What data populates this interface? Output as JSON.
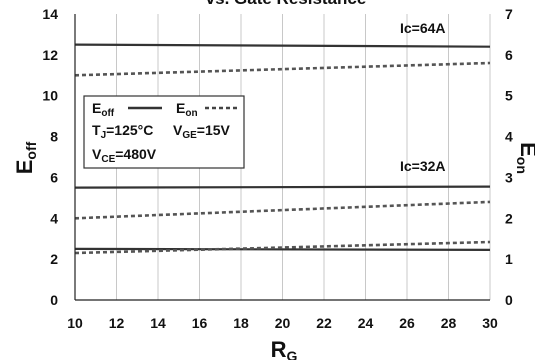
{
  "chart_data": {
    "type": "line",
    "title": "vs. Gate Resistance",
    "xlabel": {
      "main": "R",
      "sub": "G"
    },
    "ylabel_left": {
      "main": "E",
      "sub": "off"
    },
    "ylabel_right": {
      "main": "E",
      "sub": "on"
    },
    "x_ticks": [
      10,
      12,
      14,
      16,
      18,
      20,
      22,
      24,
      26,
      28,
      30
    ],
    "y_left_ticks": [
      0,
      2,
      4,
      6,
      8,
      10,
      12,
      14
    ],
    "y_right_ticks": [
      0,
      1,
      2,
      3,
      4,
      5,
      6,
      7
    ],
    "xlim": [
      10,
      30
    ],
    "ylim_left": [
      0,
      14
    ],
    "ylim_right": [
      0,
      7
    ],
    "grid": "vertical",
    "series": [
      {
        "axis": "left",
        "style": "solid",
        "x": [
          10,
          30
        ],
        "y": [
          12.5,
          12.4
        ]
      },
      {
        "axis": "right",
        "style": "dashed",
        "x": [
          10,
          30
        ],
        "y": [
          5.5,
          5.8
        ]
      },
      {
        "axis": "left",
        "style": "solid",
        "x": [
          10,
          30
        ],
        "y": [
          5.5,
          5.55
        ]
      },
      {
        "axis": "right",
        "style": "dashed",
        "x": [
          10,
          30
        ],
        "y": [
          2.0,
          2.4
        ]
      },
      {
        "axis": "left",
        "style": "solid",
        "x": [
          10,
          30
        ],
        "y": [
          2.5,
          2.45
        ]
      },
      {
        "axis": "right",
        "style": "dashed",
        "x": [
          10,
          30
        ],
        "y": [
          1.15,
          1.42
        ]
      }
    ],
    "annotations": [
      {
        "id": "ic64",
        "text": "Ic=64A"
      },
      {
        "id": "ic32",
        "text": "Ic=32A"
      }
    ],
    "legend": {
      "placement": "top-left",
      "eoff": {
        "main": "E",
        "sub": "off"
      },
      "eon": {
        "main": "E",
        "sub": "on"
      },
      "tj": {
        "pre": "T",
        "sub": "J",
        "post": "=125°C"
      },
      "vge": {
        "pre": "V",
        "sub": "GE",
        "post": "=15V"
      },
      "vce": {
        "pre": "V",
        "sub": "CE",
        "post": "=480V"
      }
    }
  }
}
